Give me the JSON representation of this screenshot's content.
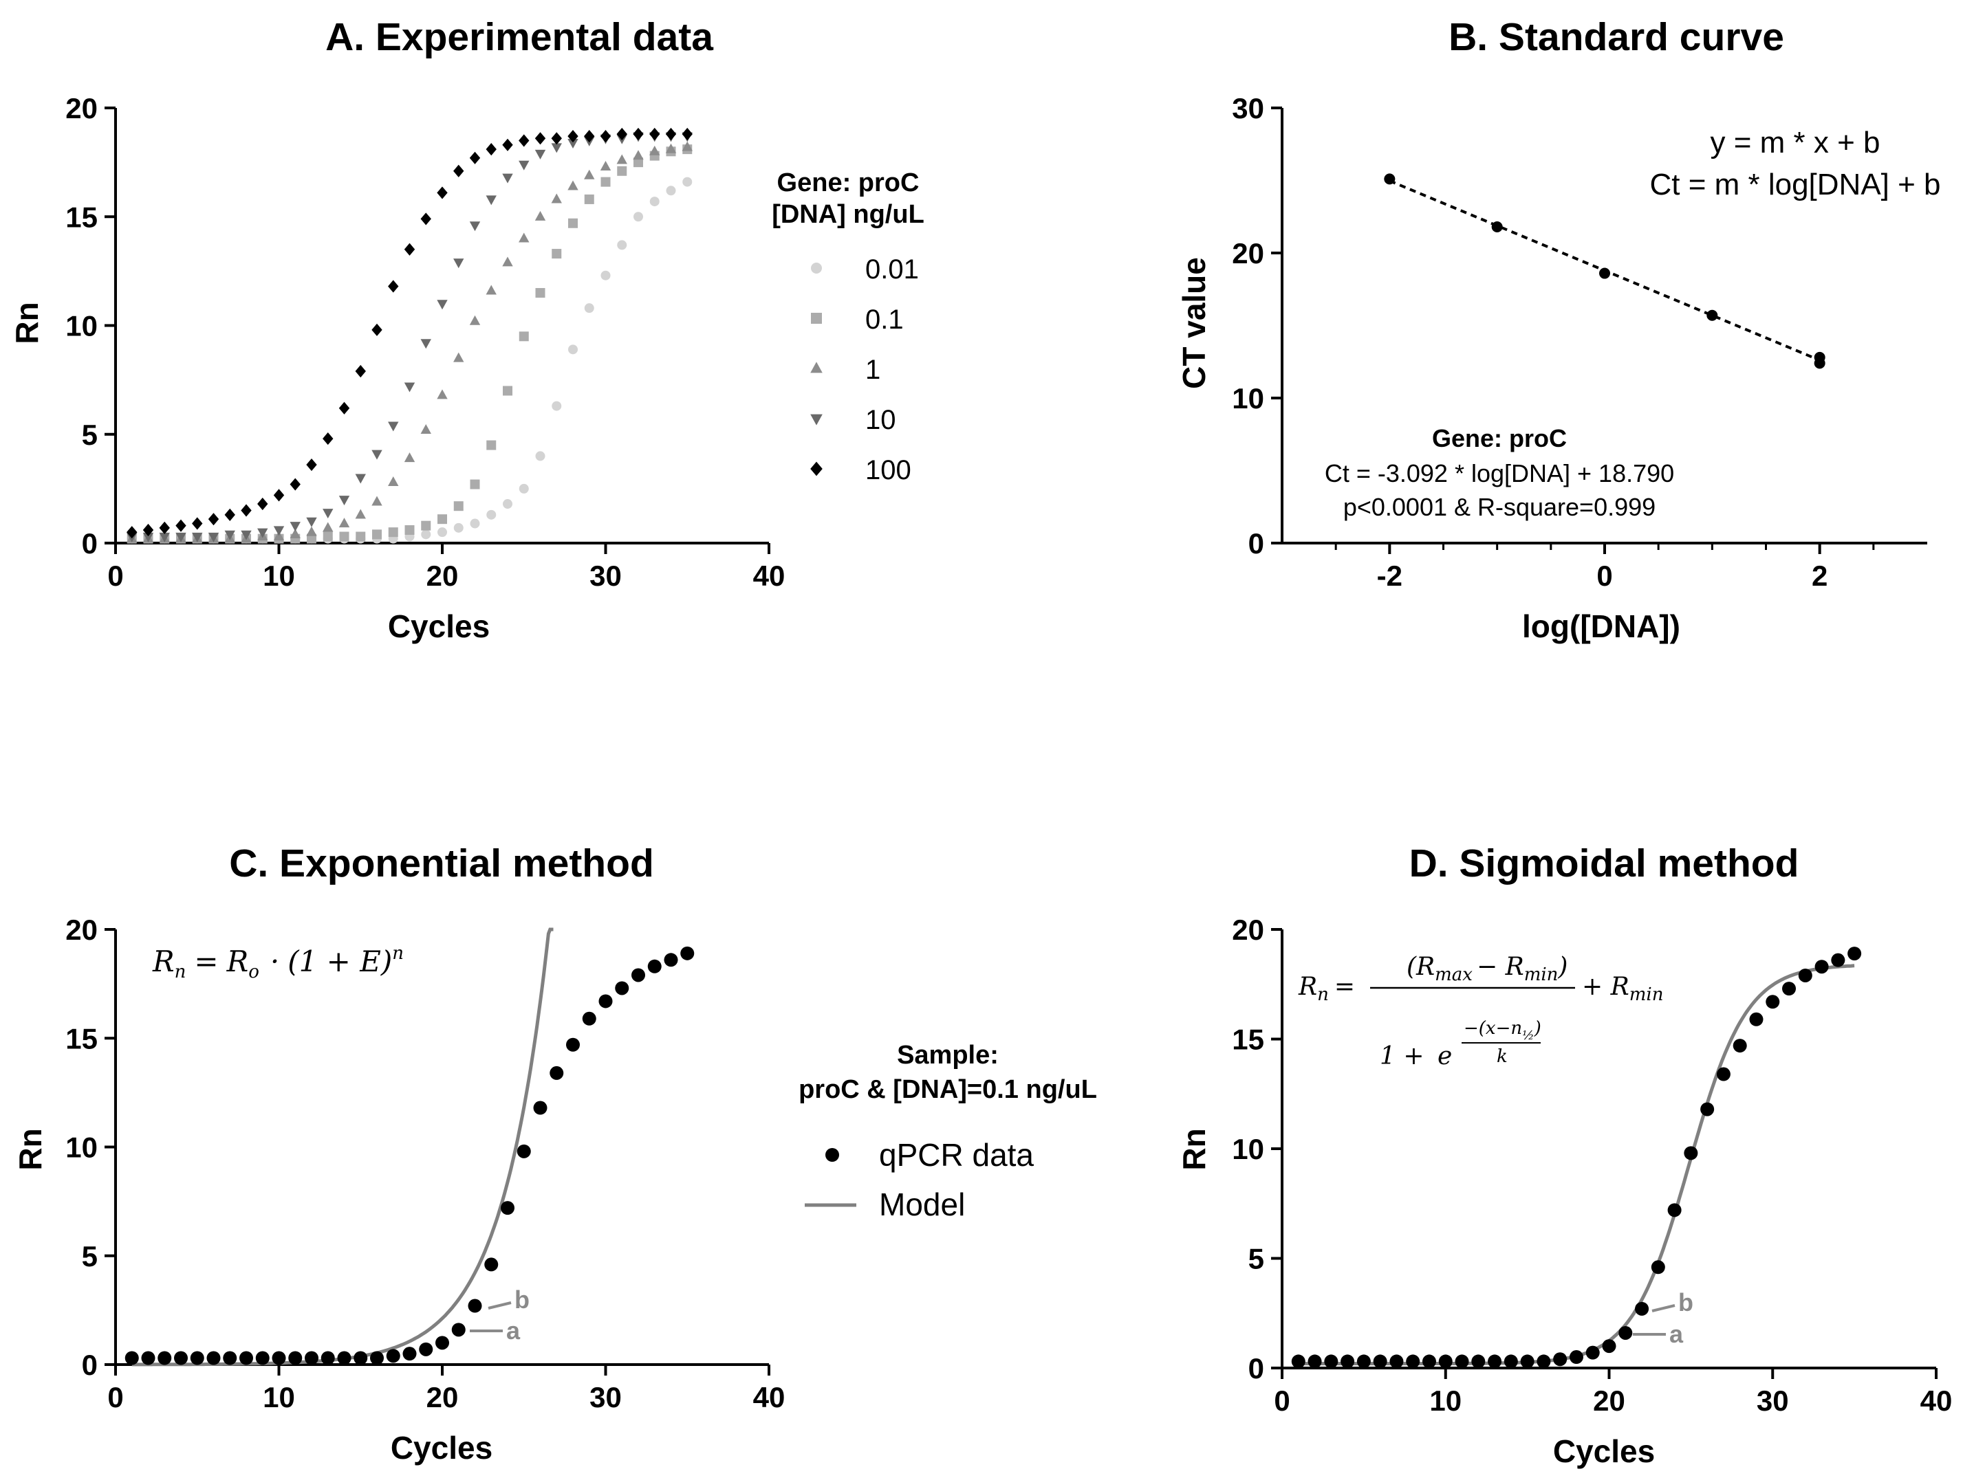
{
  "colors": {
    "axis": "#000000",
    "model": "#808080",
    "ab_label": "#8a8a8a",
    "series": [
      "#d3d3d3",
      "#ababab",
      "#8c8c8c",
      "#696969",
      "#000000"
    ]
  },
  "chart_data": [
    {
      "id": "A",
      "type": "scatter",
      "title": "A. Experimental data",
      "xlabel": "Cycles",
      "ylabel": "Rn",
      "xlim": [
        0,
        40
      ],
      "ylim": [
        0,
        20
      ],
      "xticks": [
        0,
        10,
        20,
        30,
        40
      ],
      "yticks": [
        0,
        5,
        10,
        15,
        20
      ],
      "legend_title": [
        "Gene: proC",
        "[DNA] ng/uL"
      ],
      "series": [
        {
          "name": "0.01",
          "marker": "circle",
          "x": [
            1,
            2,
            3,
            4,
            5,
            6,
            7,
            8,
            9,
            10,
            11,
            12,
            13,
            14,
            15,
            16,
            17,
            18,
            19,
            20,
            21,
            22,
            23,
            24,
            25,
            26,
            27,
            28,
            29,
            30,
            31,
            32,
            33,
            34,
            35
          ],
          "values": [
            0.2,
            0.2,
            0.2,
            0.2,
            0.2,
            0.2,
            0.2,
            0.2,
            0.2,
            0.2,
            0.2,
            0.2,
            0.2,
            0.2,
            0.2,
            0.2,
            0.2,
            0.3,
            0.4,
            0.5,
            0.7,
            0.9,
            1.3,
            1.8,
            2.5,
            4.0,
            6.3,
            8.9,
            10.8,
            12.3,
            13.7,
            15.0,
            15.7,
            16.2,
            16.6
          ]
        },
        {
          "name": "0.1",
          "marker": "square",
          "x": [
            1,
            2,
            3,
            4,
            5,
            6,
            7,
            8,
            9,
            10,
            11,
            12,
            13,
            14,
            15,
            16,
            17,
            18,
            19,
            20,
            21,
            22,
            23,
            24,
            25,
            26,
            27,
            28,
            29,
            30,
            31,
            32,
            33,
            34,
            35
          ],
          "values": [
            0.2,
            0.2,
            0.2,
            0.2,
            0.2,
            0.2,
            0.2,
            0.2,
            0.2,
            0.2,
            0.2,
            0.2,
            0.3,
            0.3,
            0.3,
            0.4,
            0.5,
            0.6,
            0.8,
            1.1,
            1.7,
            2.7,
            4.5,
            7.0,
            9.5,
            11.5,
            13.3,
            14.7,
            15.8,
            16.6,
            17.1,
            17.5,
            17.8,
            18.0,
            18.1
          ]
        },
        {
          "name": "1",
          "marker": "triangle-up",
          "x": [
            1,
            2,
            3,
            4,
            5,
            6,
            7,
            8,
            9,
            10,
            11,
            12,
            13,
            14,
            15,
            16,
            17,
            18,
            19,
            20,
            21,
            22,
            23,
            24,
            25,
            26,
            27,
            28,
            29,
            30,
            31,
            32,
            33,
            34,
            35
          ],
          "values": [
            0.2,
            0.2,
            0.2,
            0.2,
            0.2,
            0.2,
            0.2,
            0.2,
            0.3,
            0.3,
            0.4,
            0.5,
            0.7,
            0.9,
            1.3,
            1.9,
            2.8,
            3.9,
            5.2,
            6.8,
            8.5,
            10.2,
            11.6,
            12.9,
            14.0,
            15.0,
            15.8,
            16.4,
            16.9,
            17.3,
            17.6,
            17.8,
            18.0,
            18.1,
            18.2
          ]
        },
        {
          "name": "10",
          "marker": "triangle-down",
          "x": [
            1,
            2,
            3,
            4,
            5,
            6,
            7,
            8,
            9,
            10,
            11,
            12,
            13,
            14,
            15,
            16,
            17,
            18,
            19,
            20,
            21,
            22,
            23,
            24,
            25,
            26,
            27,
            28,
            29,
            30,
            31,
            32,
            33,
            34,
            35
          ],
          "values": [
            0.3,
            0.3,
            0.3,
            0.3,
            0.3,
            0.3,
            0.4,
            0.4,
            0.5,
            0.6,
            0.8,
            1.0,
            1.4,
            2.0,
            3.0,
            4.1,
            5.4,
            7.2,
            9.2,
            11.0,
            12.9,
            14.6,
            15.8,
            16.8,
            17.4,
            17.9,
            18.2,
            18.4,
            18.5,
            18.6,
            18.6,
            18.7,
            18.7,
            18.7,
            18.7
          ]
        },
        {
          "name": "100",
          "marker": "diamond",
          "x": [
            1,
            2,
            3,
            4,
            5,
            6,
            7,
            8,
            9,
            10,
            11,
            12,
            13,
            14,
            15,
            16,
            17,
            18,
            19,
            20,
            21,
            22,
            23,
            24,
            25,
            26,
            27,
            28,
            29,
            30,
            31,
            32,
            33,
            34,
            35
          ],
          "values": [
            0.5,
            0.6,
            0.7,
            0.8,
            0.9,
            1.1,
            1.3,
            1.5,
            1.8,
            2.2,
            2.7,
            3.6,
            4.8,
            6.2,
            7.9,
            9.8,
            11.8,
            13.5,
            14.9,
            16.1,
            17.1,
            17.7,
            18.1,
            18.3,
            18.5,
            18.6,
            18.6,
            18.7,
            18.7,
            18.7,
            18.8,
            18.8,
            18.8,
            18.8,
            18.8
          ]
        }
      ]
    },
    {
      "id": "B",
      "type": "scatter",
      "title": "B. Standard curve",
      "xlabel": "log([DNA])",
      "ylabel": "CT value",
      "xlim": [
        -3,
        3
      ],
      "ylim": [
        0,
        30
      ],
      "xticks": [
        -2,
        0,
        2
      ],
      "yticks": [
        0,
        10,
        20,
        30
      ],
      "x": [
        -2,
        -1,
        0,
        1,
        2,
        2
      ],
      "values": [
        25.1,
        21.8,
        18.6,
        15.7,
        12.4,
        12.8
      ],
      "fit": {
        "slope": -3.092,
        "intercept": 18.79,
        "x_range": [
          -2,
          2
        ],
        "style": "dashed"
      },
      "equation_lines": [
        "y = m * x + b",
        "Ct = m * log[DNA] + b"
      ],
      "annotation": [
        "Gene: proC",
        "Ct = -3.092 * log[DNA] + 18.790",
        "p<0.0001 & R-square=0.999"
      ]
    },
    {
      "id": "C",
      "type": "scatter",
      "title": "C. Exponential method",
      "xlabel": "Cycles",
      "ylabel": "Rn",
      "xlim": [
        0,
        40
      ],
      "ylim": [
        0,
        20
      ],
      "xticks": [
        0,
        10,
        20,
        30,
        40
      ],
      "yticks": [
        0,
        5,
        10,
        15,
        20
      ],
      "x": [
        1,
        2,
        3,
        4,
        5,
        6,
        7,
        8,
        9,
        10,
        11,
        12,
        13,
        14,
        15,
        16,
        17,
        18,
        19,
        20,
        21,
        22,
        23,
        24,
        25,
        26,
        27,
        28,
        29,
        30,
        31,
        32,
        33,
        34,
        35
      ],
      "values": [
        0.3,
        0.3,
        0.3,
        0.3,
        0.3,
        0.3,
        0.3,
        0.3,
        0.3,
        0.3,
        0.3,
        0.3,
        0.3,
        0.3,
        0.3,
        0.3,
        0.4,
        0.5,
        0.7,
        1.0,
        1.6,
        2.7,
        4.6,
        7.2,
        9.8,
        11.8,
        13.4,
        14.7,
        15.9,
        16.7,
        17.3,
        17.9,
        18.3,
        18.6,
        18.9
      ],
      "model": {
        "type": "exponential",
        "r0": 0.0022,
        "e": 0.41,
        "x_range": [
          1,
          26.8
        ]
      },
      "legend_title": [
        "Sample:",
        "proC & [DNA]=0.1 ng/uL"
      ],
      "legend": [
        "qPCR data",
        "Model"
      ],
      "point_labels": {
        "a": "a",
        "b": "b"
      },
      "formula": {
        "lhs": "R",
        "lhs_sub": "n",
        "eq": "=",
        "r": "R",
        "r_sub": "o",
        "dot": "·",
        "base": "(1 + E)",
        "exp": "n"
      }
    },
    {
      "id": "D",
      "type": "scatter",
      "title": "D. Sigmoidal method",
      "xlabel": "Cycles",
      "ylabel": "Rn",
      "xlim": [
        0,
        40
      ],
      "ylim": [
        0,
        20
      ],
      "xticks": [
        0,
        10,
        20,
        30,
        40
      ],
      "yticks": [
        0,
        5,
        10,
        15,
        20
      ],
      "x": [
        1,
        2,
        3,
        4,
        5,
        6,
        7,
        8,
        9,
        10,
        11,
        12,
        13,
        14,
        15,
        16,
        17,
        18,
        19,
        20,
        21,
        22,
        23,
        24,
        25,
        26,
        27,
        28,
        29,
        30,
        31,
        32,
        33,
        34,
        35
      ],
      "values": [
        0.3,
        0.3,
        0.3,
        0.3,
        0.3,
        0.3,
        0.3,
        0.3,
        0.3,
        0.3,
        0.3,
        0.3,
        0.3,
        0.3,
        0.3,
        0.3,
        0.4,
        0.5,
        0.7,
        1.0,
        1.6,
        2.7,
        4.6,
        7.2,
        9.8,
        11.8,
        13.4,
        14.7,
        15.9,
        16.7,
        17.3,
        17.9,
        18.3,
        18.6,
        18.9
      ],
      "model": {
        "type": "sigmoid",
        "rmin": 0.2,
        "rmax": 18.4,
        "n_half": 24.9,
        "k": 1.75,
        "x_range": [
          1,
          35
        ]
      },
      "point_labels": {
        "a": "a",
        "b": "b"
      },
      "formula": {
        "lhs": "R",
        "lhs_sub": "n",
        "eq": "=",
        "num": "(R",
        "num_sub1": "max",
        "num_mid": "− R",
        "num_sub2": "min",
        "num_end": ")",
        "plus": "+ R",
        "plus_sub": "min",
        "den_one": "1 + ",
        "den_e": "e",
        "exp_num": "−(x−n",
        "exp_half": "½",
        "exp_close": ")",
        "exp_den": "k"
      }
    }
  ]
}
